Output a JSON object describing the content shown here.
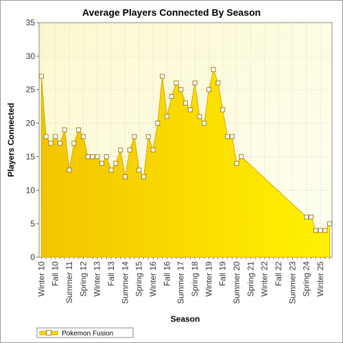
{
  "chart_data": {
    "type": "area",
    "title": "Average Players Connected By Season",
    "xlabel": "Season",
    "ylabel": "Players Connected",
    "ylim": [
      0,
      35
    ],
    "y_ticks": [
      0,
      5,
      10,
      15,
      20,
      25,
      30,
      35
    ],
    "grid": true,
    "legend_position": "bottom-left",
    "x_tick_labels": [
      "Winter 10",
      "Fall 10",
      "Summer 11",
      "Spring 12",
      "Winter 13",
      "Fall 13",
      "Summer 14",
      "Spring 15",
      "Winter 16",
      "Fall 16",
      "Summer 17",
      "Spring 18",
      "Winter 19",
      "Fall 19",
      "Summer 20",
      "Spring 21",
      "Winter 22",
      "Fall 22",
      "Summer 23",
      "Spring 24",
      "Winter 25"
    ],
    "series": [
      {
        "name": "Pokemon Fusion",
        "color": "#ffd700",
        "points": [
          [
            0,
            27
          ],
          [
            1,
            18
          ],
          [
            2,
            17
          ],
          [
            3,
            18
          ],
          [
            4,
            17
          ],
          [
            5,
            19
          ],
          [
            6,
            13
          ],
          [
            7,
            17
          ],
          [
            8,
            19
          ],
          [
            9,
            18
          ],
          [
            10,
            15
          ],
          [
            11,
            15
          ],
          [
            12,
            15
          ],
          [
            13,
            14
          ],
          [
            14,
            15
          ],
          [
            15,
            13
          ],
          [
            16,
            14
          ],
          [
            17,
            16
          ],
          [
            18,
            12
          ],
          [
            19,
            16
          ],
          [
            20,
            18
          ],
          [
            21,
            13
          ],
          [
            22,
            12
          ],
          [
            23,
            18
          ],
          [
            24,
            16
          ],
          [
            25,
            20
          ],
          [
            26,
            27
          ],
          [
            27,
            21
          ],
          [
            28,
            24
          ],
          [
            29,
            26
          ],
          [
            30,
            25
          ],
          [
            31,
            23
          ],
          [
            32,
            22
          ],
          [
            33,
            26
          ],
          [
            34,
            21
          ],
          [
            35,
            20
          ],
          [
            36,
            25
          ],
          [
            37,
            28
          ],
          [
            38,
            26
          ],
          [
            39,
            22
          ],
          [
            40,
            18
          ],
          [
            41,
            18
          ],
          [
            42,
            14
          ],
          [
            43,
            15
          ],
          [
            57,
            6
          ],
          [
            58,
            6
          ],
          [
            59,
            4
          ],
          [
            60,
            4
          ],
          [
            61,
            4
          ],
          [
            62,
            5
          ]
        ]
      }
    ]
  }
}
